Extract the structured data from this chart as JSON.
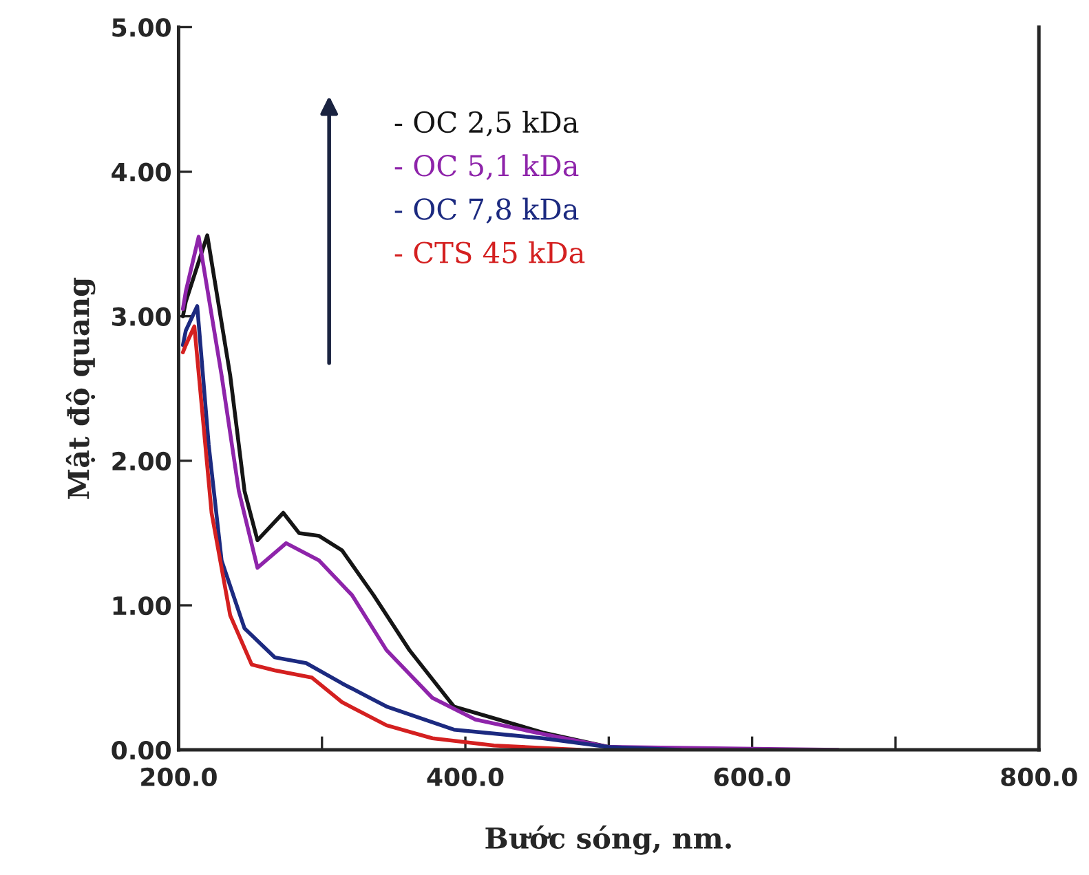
{
  "chart_data": {
    "type": "line",
    "xlabel": "Bước sóng, nm.",
    "ylabel": "Mật độ quang",
    "xlim": [
      200,
      800
    ],
    "xticks": [
      {
        "value": 200,
        "label": "200.0"
      },
      {
        "value": 300,
        "label": null
      },
      {
        "value": 400,
        "label": "400.0"
      },
      {
        "value": 500,
        "label": null
      },
      {
        "value": 600,
        "label": "600.0"
      },
      {
        "value": 700,
        "label": null
      },
      {
        "value": 800,
        "label": "800.0"
      }
    ],
    "ylim": [
      0,
      5
    ],
    "yticks": [
      {
        "value": 0,
        "label": "0.00"
      },
      {
        "value": 1,
        "label": "1.00"
      },
      {
        "value": 2,
        "label": "2.00"
      },
      {
        "value": 3,
        "label": "3.00"
      },
      {
        "value": 4,
        "label": "4.00"
      },
      {
        "value": 5,
        "label": "5.00"
      }
    ],
    "grid": false,
    "legend": "top",
    "marker": "none",
    "line_style": "solid",
    "series": [
      {
        "name": "- OC 2,5 kDa",
        "color": "#151515",
        "x": [
          203,
          205,
          220,
          236,
          246,
          255,
          273,
          284,
          298,
          314,
          336,
          361,
          392,
          423,
          454,
          500,
          550
        ],
        "values": [
          3.0,
          3.1,
          3.56,
          2.59,
          1.79,
          1.45,
          1.64,
          1.5,
          1.48,
          1.38,
          1.07,
          0.69,
          0.3,
          0.21,
          0.12,
          0.02,
          0.0
        ]
      },
      {
        "name": "- OC 5,1 kDa",
        "color": "#8e24aa",
        "x": [
          203,
          205,
          214,
          230,
          242,
          255,
          275,
          298,
          321,
          345,
          377,
          407,
          454,
          500,
          660
        ],
        "values": [
          3.05,
          3.17,
          3.55,
          2.59,
          1.79,
          1.26,
          1.43,
          1.31,
          1.07,
          0.69,
          0.36,
          0.21,
          0.11,
          0.02,
          0.0
        ]
      },
      {
        "name": "- OC 7,8 kDa",
        "color": "#1c2a80",
        "x": [
          203,
          205,
          213,
          221,
          230,
          246,
          267,
          289,
          314,
          345,
          392,
          454,
          500,
          550
        ],
        "values": [
          2.8,
          2.9,
          3.07,
          2.11,
          1.31,
          0.84,
          0.64,
          0.6,
          0.46,
          0.3,
          0.14,
          0.08,
          0.02,
          0.0
        ]
      },
      {
        "name": "- CTS 45 kDa",
        "color": "#d42020",
        "x": [
          203,
          205,
          211,
          223,
          236,
          251,
          267,
          293,
          314,
          345,
          377,
          420,
          480
        ],
        "values": [
          2.75,
          2.8,
          2.93,
          1.64,
          0.93,
          0.59,
          0.55,
          0.5,
          0.33,
          0.17,
          0.08,
          0.03,
          0.0
        ]
      }
    ]
  }
}
